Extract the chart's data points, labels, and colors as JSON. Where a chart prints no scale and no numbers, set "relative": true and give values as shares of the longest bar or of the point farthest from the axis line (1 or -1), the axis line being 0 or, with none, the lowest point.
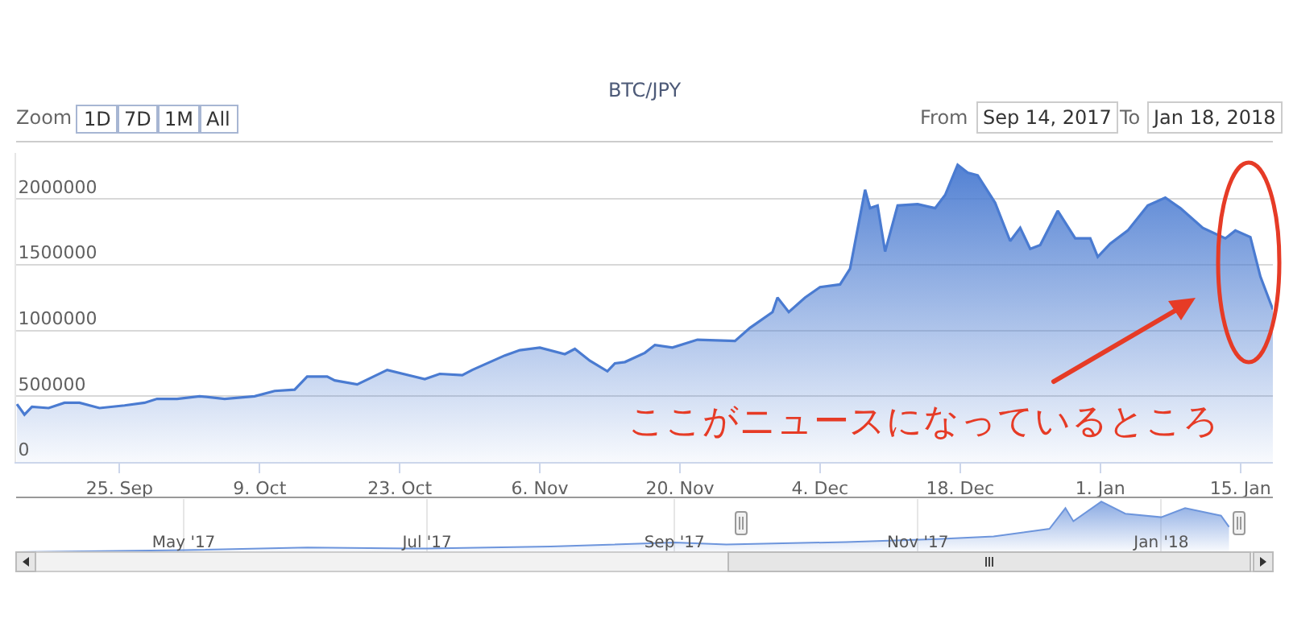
{
  "chart_data": [
    {
      "type": "area",
      "title": "BTC/JPY",
      "x": [
        "2017-09-14T18:00",
        "2017-09-15T12:00",
        "2017-09-16T06:00",
        "2017-09-17T22:00",
        "2017-09-19T12:00",
        "2017-09-21T00:00",
        "2017-09-23T00:00",
        "2017-09-25T12:00",
        "2017-09-27T12:00",
        "2017-09-28T18:00",
        "2017-09-30T18:00",
        "2017-10-03T00:00",
        "2017-10-05T12:00",
        "2017-10-08T12:00",
        "2017-10-10T12:00",
        "2017-10-12T12:00",
        "2017-10-13T18:00",
        "2017-10-15T18:00",
        "2017-10-16T12:00",
        "2017-10-18T18:00",
        "2017-10-21T18:00",
        "2017-10-25T12:00",
        "2017-10-27T00:00",
        "2017-10-29T06:00",
        "2017-10-30T06:00",
        "2017-11-02T12:00",
        "2017-11-04T00:00",
        "2017-11-06T00:00",
        "2017-11-08T12:00",
        "2017-11-09T12:00",
        "2017-11-11T00:00",
        "2017-11-12T18:00",
        "2017-11-13T12:00",
        "2017-11-14T12:00",
        "2017-11-16T12:00",
        "2017-11-17T12:00",
        "2017-11-19T06:00",
        "2017-11-21T18:00",
        "2017-11-25T12:00",
        "2017-11-27T00:00",
        "2017-11-29T06:00",
        "2017-11-29T18:00",
        "2017-11-30T21:00",
        "2017-12-02T12:00",
        "2017-12-04T00:00",
        "2017-12-06T00:00",
        "2017-12-07T00:00",
        "2017-12-08T12:00",
        "2017-12-09T00:00",
        "2017-12-09T18:00",
        "2017-12-10T12:00",
        "2017-12-11T18:00",
        "2017-12-13T18:00",
        "2017-12-15T12:00",
        "2017-12-16T12:00",
        "2017-12-17T18:00",
        "2017-12-18T18:00",
        "2017-12-19T18:00",
        "2017-12-21T12:00",
        "2017-12-23T00:00",
        "2017-12-24T00:00",
        "2017-12-25T00:00",
        "2017-12-26T00:00",
        "2017-12-27T18:00",
        "2017-12-29T12:00",
        "2017-12-31T00:00",
        "2017-12-31T18:00",
        "2018-01-02T00:00",
        "2018-01-03T18:00",
        "2018-01-05T18:00",
        "2018-01-07T12:00",
        "2018-01-09T00:00",
        "2018-01-11T06:00",
        "2018-01-13T12:00",
        "2018-01-14T12:00",
        "2018-01-16T00:00",
        "2018-01-17T00:00",
        "2018-01-18T06:00"
      ],
      "series": [
        {
          "color": "#4a7bd1",
          "values": [
            440000,
            360000,
            420000,
            410000,
            450000,
            450000,
            410000,
            430000,
            450000,
            480000,
            480000,
            500000,
            480000,
            500000,
            540000,
            550000,
            650000,
            650000,
            620000,
            590000,
            700000,
            630000,
            670000,
            660000,
            700000,
            810000,
            850000,
            870000,
            820000,
            860000,
            770000,
            690000,
            750000,
            760000,
            830000,
            890000,
            870000,
            930000,
            920000,
            1020000,
            1140000,
            1250000,
            1140000,
            1250000,
            1330000,
            1350000,
            1470000,
            2070000,
            1930000,
            1950000,
            1600000,
            1950000,
            1960000,
            1930000,
            2030000,
            2260000,
            2200000,
            2180000,
            1970000,
            1680000,
            1780000,
            1620000,
            1650000,
            1910000,
            1700000,
            1700000,
            1560000,
            1660000,
            1760000,
            1950000,
            2010000,
            1930000,
            1780000,
            1700000,
            1760000,
            1710000,
            1410000,
            1160000
          ]
        }
      ],
      "xlim": [
        "2017-09-14T16:00",
        "2018-01-18T06:00"
      ],
      "xticks": [
        {
          "value": "2017-09-25",
          "label": "25. Sep"
        },
        {
          "value": "2017-10-09",
          "label": "9. Oct"
        },
        {
          "value": "2017-10-23",
          "label": "23. Oct"
        },
        {
          "value": "2017-11-06",
          "label": "6. Nov"
        },
        {
          "value": "2017-11-20",
          "label": "20. Nov"
        },
        {
          "value": "2017-12-04",
          "label": "4. Dec"
        },
        {
          "value": "2017-12-18",
          "label": "18. Dec"
        },
        {
          "value": "2018-01-01",
          "label": "1. Jan"
        },
        {
          "value": "2018-01-15",
          "label": "15. Jan"
        }
      ],
      "ylim": [
        0,
        2350000
      ],
      "yticks": [
        0,
        500000,
        1000000,
        1500000,
        2000000
      ],
      "grid": "y",
      "annotations": [
        "Zoom",
        "1D",
        "7D",
        "1M",
        "All",
        "From",
        "Sep 14, 2017",
        "To",
        "Jan 18, 2018",
        "ここがニュースになっているところ"
      ]
    },
    {
      "type": "area",
      "relative": true,
      "x": [
        "2017-03-20",
        "2017-05-01",
        "2017-06-01",
        "2017-07-01",
        "2017-08-01",
        "2017-09-01",
        "2017-09-14",
        "2017-10-14",
        "2017-11-06",
        "2017-11-20",
        "2017-12-04",
        "2017-12-08",
        "2017-12-10",
        "2017-12-17",
        "2017-12-23",
        "2018-01-01",
        "2018-01-07",
        "2018-01-16",
        "2018-01-18"
      ],
      "series": [
        {
          "color": "#6d95dc",
          "values": [
            0,
            0.04,
            0.09,
            0.07,
            0.11,
            0.19,
            0.15,
            0.2,
            0.26,
            0.31,
            0.46,
            0.87,
            0.61,
            1,
            0.76,
            0.69,
            0.87,
            0.72,
            0.5
          ]
        }
      ],
      "xlim": [
        "2017-03-20",
        "2018-01-29"
      ],
      "xticks": [
        {
          "value": "2017-05-01",
          "label": "May '17"
        },
        {
          "value": "2017-07-01",
          "label": "Jul '17"
        },
        {
          "value": "2017-09-01",
          "label": "Sep '17"
        },
        {
          "value": "2017-11-01",
          "label": "Nov '17"
        },
        {
          "value": "2018-01-01",
          "label": "Jan '18"
        }
      ],
      "grid": "x",
      "tick_labels": "x"
    }
  ]
}
